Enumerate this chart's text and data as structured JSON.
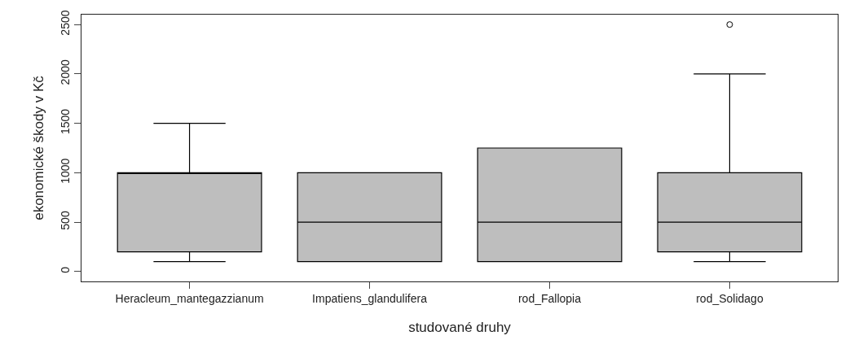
{
  "chart_data": {
    "type": "box",
    "xlabel": "studované druhy",
    "ylabel": "ekonomické škody v Kč",
    "categories": [
      "Heracleum_mantegazzianum",
      "Impatiens_glandulifera",
      "rod_Fallopia",
      "rod_Solidago"
    ],
    "boxes": [
      {
        "low": 100,
        "q1": 200,
        "median": 1000,
        "q3": 1000,
        "high": 1500
      },
      {
        "low": 100,
        "q1": 100,
        "median": 500,
        "q3": 1000,
        "high": 1000
      },
      {
        "low": 100,
        "q1": 100,
        "median": 500,
        "q3": 1250,
        "high": 1250
      },
      {
        "low": 100,
        "q1": 200,
        "median": 500,
        "q3": 1000,
        "high": 2000,
        "outliers": [
          2500
        ]
      }
    ],
    "color": "#bebebe",
    "ylim": [
      -100,
      2600
    ],
    "yticks": [
      0,
      500,
      1000,
      1500,
      2000,
      2500
    ]
  }
}
